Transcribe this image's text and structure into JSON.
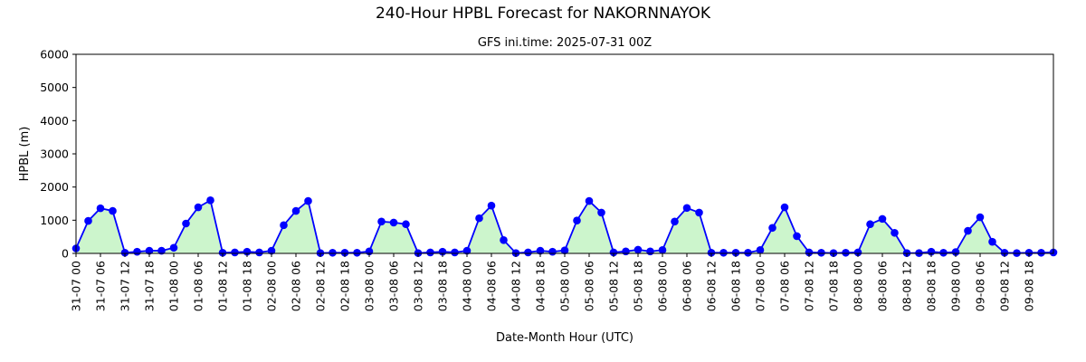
{
  "figure": {
    "suptitle": "240-Hour HPBL Forecast for NAKORNNAYOK"
  },
  "chart_data": {
    "type": "line",
    "title": "GFS ini.time: 2025-07-31 00Z",
    "xlabel": "Date-Month Hour (UTC)",
    "ylabel": "HPBL (m)",
    "ylim": [
      0,
      6000
    ],
    "yticks": [
      0,
      1000,
      2000,
      3000,
      4000,
      5000,
      6000
    ],
    "xtick_labels": [
      "31-07 00",
      "31-07 06",
      "31-07 12",
      "31-07 18",
      "01-08 00",
      "01-08 06",
      "01-08 12",
      "01-08 18",
      "02-08 00",
      "02-08 06",
      "02-08 12",
      "02-08 18",
      "03-08 00",
      "03-08 06",
      "03-08 12",
      "03-08 18",
      "04-08 00",
      "04-08 06",
      "04-08 12",
      "04-08 18",
      "05-08 00",
      "05-08 06",
      "05-08 12",
      "05-08 18",
      "06-08 00",
      "06-08 06",
      "06-08 12",
      "06-08 18",
      "07-08 00",
      "07-08 06",
      "07-08 12",
      "07-08 18",
      "08-08 00",
      "08-08 06",
      "08-08 12",
      "08-08 18",
      "09-08 00",
      "09-08 06",
      "09-08 12",
      "09-08 18"
    ],
    "x_step_hours": 3,
    "legend": "none",
    "grid": false,
    "series": [
      {
        "values": [
          150,
          980,
          1360,
          1280,
          20,
          50,
          80,
          80,
          170,
          900,
          1390,
          1600,
          20,
          30,
          50,
          30,
          80,
          850,
          1280,
          1580,
          10,
          20,
          20,
          20,
          60,
          960,
          930,
          880,
          10,
          30,
          50,
          30,
          80,
          1060,
          1440,
          400,
          10,
          30,
          80,
          50,
          90,
          990,
          1580,
          1230,
          30,
          60,
          110,
          60,
          100,
          960,
          1370,
          1230,
          20,
          20,
          20,
          20,
          100,
          770,
          1390,
          520,
          30,
          20,
          10,
          20,
          30,
          880,
          1040,
          620,
          10,
          10,
          50,
          20,
          40,
          680,
          1090,
          350,
          20,
          10,
          20,
          20,
          30
        ],
        "line_color": "#0000ff",
        "marker_color": "#0000ff",
        "fill_color": "#ccf5cc"
      }
    ]
  }
}
